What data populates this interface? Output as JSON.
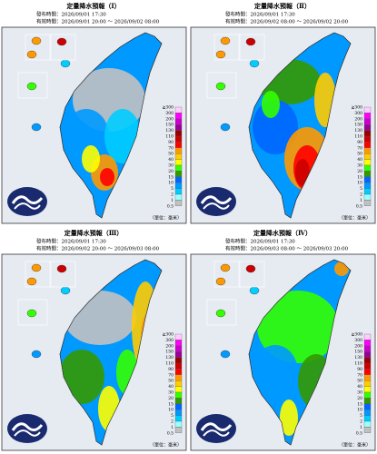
{
  "panels": [
    {
      "title": "定量降水預報（Ⅰ）",
      "issued": "發布時間：2026/09/01 17:30",
      "valid": "有效時間：2026/09/01 20:00 ～ 2026/09/02 08:00"
    },
    {
      "title": "定量降水預報（Ⅱ）",
      "issued": "發布時間：2026/09/01 17:30",
      "valid": "有效時間：2026/09/02 08:00 ～ 2026/09/02 20:00"
    },
    {
      "title": "定量降水預報（Ⅲ）",
      "issued": "發布時間：2026/09/01 17:30",
      "valid": "有效時間：2026/09/02 20:00 ～ 2026/09/03 08:00"
    },
    {
      "title": "定量降水預報（Ⅳ）",
      "issued": "發布時間：2026/09/01 17:30",
      "valid": "有效時間：2026/09/03 08:00 ～ 2026/09/03 20:00"
    }
  ],
  "legend": {
    "labels": [
      "≧300",
      "300",
      "200",
      "150",
      "130",
      "110",
      "90",
      "70",
      "50",
      "40",
      "30",
      "20",
      "15",
      "10",
      "5",
      "2",
      "1",
      "0.5"
    ],
    "colors": [
      "#ffccff",
      "#ff00ff",
      "#cc00cc",
      "#990099",
      "#990000",
      "#cc0000",
      "#ff0000",
      "#ff9900",
      "#ffcc00",
      "#ffff00",
      "#33ff00",
      "#339900",
      "#0066ff",
      "#0099ff",
      "#00ccff",
      "#99ffff",
      "#c1c1c1"
    ]
  },
  "unit": "（單位：毫米）"
}
